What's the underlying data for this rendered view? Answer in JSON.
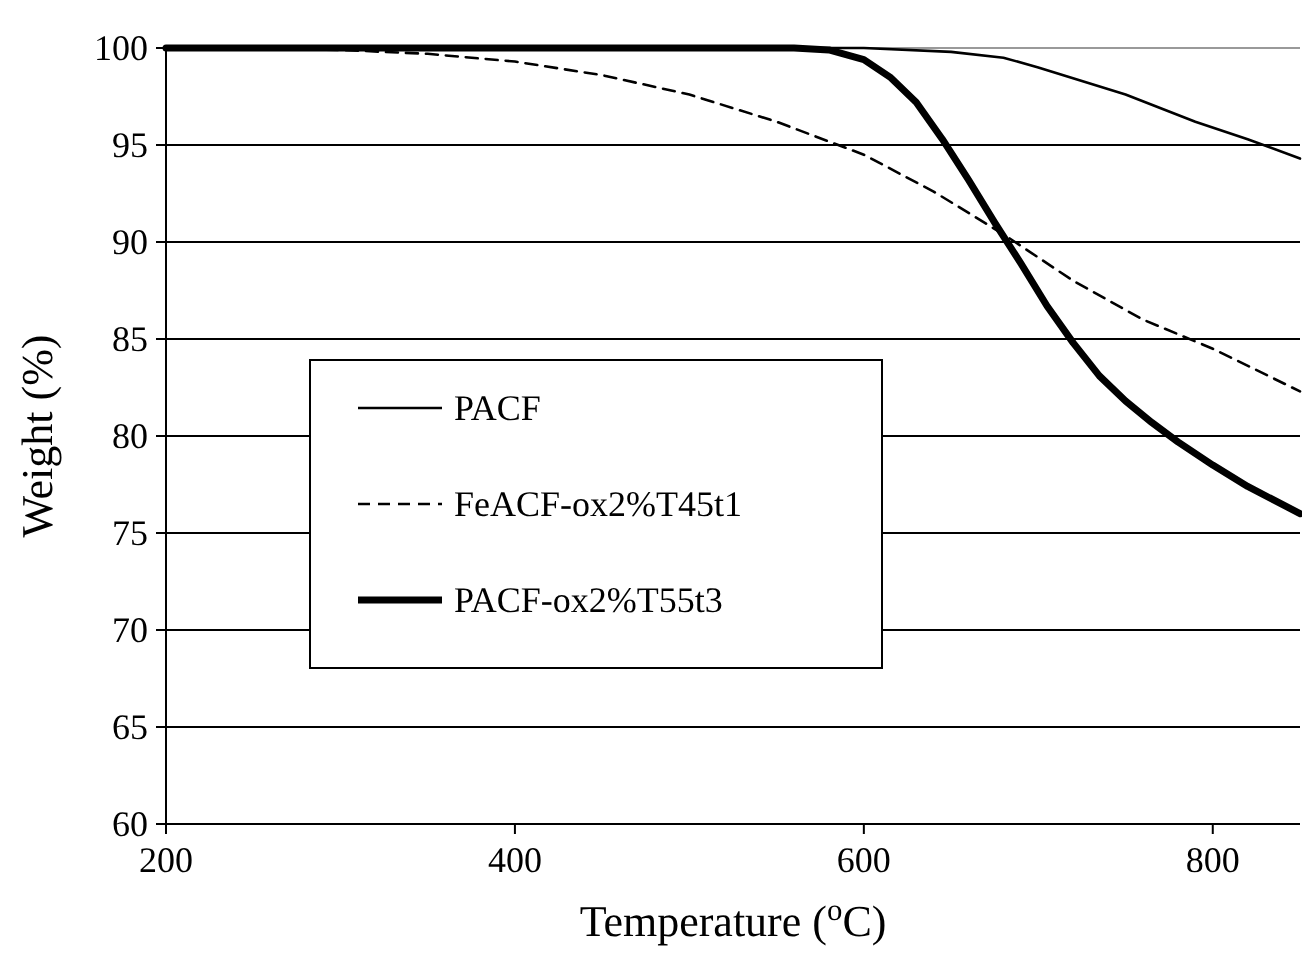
{
  "chart_data": {
    "type": "line",
    "xlabel": "Temperature  ($^{o}$C)",
    "ylabel": "Weight (%)",
    "xlim": [
      200,
      850
    ],
    "xticks": [
      200,
      400,
      600,
      800
    ],
    "ylim": [
      60,
      100
    ],
    "yticks": [
      60,
      65,
      70,
      75,
      80,
      85,
      90,
      95,
      100
    ],
    "grid": "y",
    "legend": "left",
    "marker": "none",
    "series": [
      {
        "name": "PACF",
        "color": "#000000",
        "line_style": "solid",
        "x": [
          200,
          400,
          600,
          650,
          680,
          700,
          750,
          790,
          820,
          850
        ],
        "values": [
          100,
          100,
          100,
          99.8,
          99.5,
          99,
          97.6,
          96.2,
          95.3,
          94.3
        ]
      },
      {
        "name": "FeACF-ox2%T45t1",
        "color": "#000000",
        "line_style": "dashed",
        "x": [
          200,
          300,
          350,
          400,
          450,
          500,
          550,
          600,
          640,
          680,
          720,
          760,
          800,
          850
        ],
        "values": [
          100,
          99.9,
          99.7,
          99.3,
          98.6,
          97.6,
          96.2,
          94.5,
          92.6,
          90.4,
          88,
          86,
          84.5,
          82.3
        ]
      },
      {
        "name": "PACF-ox2%T55t3",
        "color": "#000000",
        "line_style": "solid",
        "x": [
          200,
          400,
          560,
          580,
          600,
          615,
          630,
          645,
          660,
          675,
          690,
          705,
          720,
          735,
          750,
          765,
          780,
          800,
          820,
          850
        ],
        "values": [
          100,
          100,
          100,
          99.9,
          99.4,
          98.5,
          97.2,
          95.3,
          93.2,
          91,
          88.9,
          86.7,
          84.8,
          83.1,
          81.8,
          80.7,
          79.7,
          78.5,
          77.4,
          76
        ]
      }
    ]
  }
}
